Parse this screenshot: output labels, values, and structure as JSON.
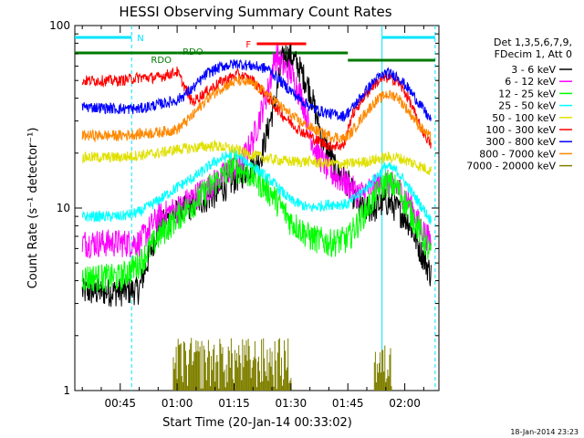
{
  "chart_data": {
    "type": "line",
    "title": "HESSI Observing Summary Count Rates",
    "xlabel": "Start Time (20-Jan-14 00:33:02)",
    "ylabel": "Count Rate (s⁻¹ detector⁻¹)",
    "y_scale": "log",
    "ylim": [
      1,
      100
    ],
    "xlim": [
      "00:33:02",
      "02:09:00"
    ],
    "x_tick_labels": [
      "00:45",
      "01:00",
      "01:15",
      "01:30",
      "01:45",
      "02:00"
    ],
    "x_ticks_minutes": [
      45,
      60,
      75,
      90,
      105,
      120
    ],
    "y_tick_labels": [
      "1",
      "10",
      "100"
    ],
    "y_ticks": [
      1,
      10,
      100
    ],
    "legend_header": [
      "Det 1,3,5,6,7,9,",
      "FDecim 1, Att 0"
    ],
    "legend_position": "right",
    "date_stamp": "18-Jan-2014 23:23",
    "flags": {
      "N": {
        "label": "N",
        "color": "#00e5ff",
        "segments": [
          [
            "00:33",
            "00:48"
          ],
          [
            "01:54",
            "02:08"
          ]
        ]
      },
      "RDO": {
        "label": "RDO",
        "color": "#007a00",
        "segments": [
          [
            "00:33",
            "01:00"
          ],
          [
            "01:00",
            "01:45"
          ],
          [
            "01:45",
            "02:08"
          ]
        ]
      },
      "F": {
        "label": "F",
        "color": "#ff0000",
        "segments": [
          [
            "01:21",
            "01:34"
          ]
        ]
      }
    },
    "series": [
      {
        "name": "3 - 6 keV",
        "color": "#000000",
        "x": [
          35,
          45,
          50,
          55,
          60,
          70,
          78,
          82,
          86,
          88,
          90,
          92,
          95,
          98,
          102,
          105,
          108,
          112,
          115,
          118,
          121,
          124,
          127
        ],
        "y": [
          3.5,
          3.5,
          3.6,
          8.0,
          9.5,
          12.0,
          16.0,
          19.0,
          40.0,
          70.0,
          68.0,
          60.0,
          45.0,
          25.0,
          16.0,
          14.0,
          10.0,
          10.0,
          11.0,
          10.0,
          8.5,
          6.0,
          4.3
        ]
      },
      {
        "name": "6 - 12 keV",
        "color": "#ff00ff",
        "x": [
          35,
          45,
          50,
          55,
          60,
          70,
          77,
          80,
          84,
          86,
          88,
          90,
          93,
          96,
          100,
          104,
          108,
          112,
          115,
          118,
          121,
          124,
          127
        ],
        "y": [
          6.5,
          6.5,
          6.5,
          9.0,
          10.0,
          14.0,
          18.0,
          24.0,
          45.0,
          70.0,
          60.0,
          55.0,
          40.0,
          22.0,
          16.0,
          14.0,
          12.0,
          13.0,
          14.0,
          13.0,
          11.0,
          8.0,
          6.5
        ]
      },
      {
        "name": "12 - 25 keV",
        "color": "#00ff00",
        "x": [
          35,
          45,
          50,
          55,
          60,
          65,
          70,
          75,
          80,
          85,
          90,
          95,
          100,
          105,
          110,
          115,
          118,
          121,
          124,
          127
        ],
        "y": [
          4.2,
          4.2,
          5.0,
          7.0,
          9.0,
          11.0,
          14.0,
          17.0,
          15.0,
          12.0,
          8.5,
          7.0,
          6.5,
          6.8,
          10.0,
          14.0,
          13.0,
          10.0,
          7.5,
          5.5
        ]
      },
      {
        "name": "25 - 50 keV",
        "color": "#00ffff",
        "x": [
          35,
          45,
          50,
          55,
          60,
          65,
          70,
          75,
          80,
          85,
          90,
          95,
          100,
          105,
          110,
          115,
          118,
          121,
          124,
          127
        ],
        "y": [
          9.0,
          9.0,
          9.5,
          11.0,
          13.0,
          15.0,
          18.0,
          20.0,
          17.0,
          14.0,
          11.0,
          10.0,
          10.5,
          10.5,
          13.0,
          17.0,
          16.0,
          13.0,
          10.5,
          8.5
        ]
      },
      {
        "name": "50 - 100 keV",
        "color": "#e0e000",
        "x": [
          35,
          45,
          50,
          55,
          60,
          65,
          70,
          75,
          80,
          85,
          90,
          95,
          100,
          105,
          110,
          115,
          118,
          121,
          124,
          127
        ],
        "y": [
          19.0,
          19.0,
          19.5,
          20.0,
          21.0,
          21.5,
          22.0,
          21.0,
          19.5,
          18.5,
          18.0,
          18.0,
          17.5,
          17.5,
          18.0,
          19.0,
          19.0,
          18.0,
          17.0,
          16.0
        ]
      },
      {
        "name": "100 - 300 keV",
        "color": "#ff0000",
        "x": [
          35,
          45,
          50,
          55,
          60,
          64,
          68,
          72,
          76,
          80,
          84,
          88,
          92,
          96,
          100,
          104,
          106,
          109,
          112,
          115,
          118,
          121,
          124,
          127
        ],
        "y": [
          50.0,
          50.0,
          52.0,
          52.0,
          56.0,
          38.0,
          44.0,
          50.0,
          54.0,
          50.0,
          40.0,
          32.0,
          27.0,
          24.0,
          22.0,
          22.0,
          32.0,
          40.0,
          48.0,
          52.0,
          50.0,
          40.0,
          28.0,
          22.0
        ]
      },
      {
        "name": "300 - 800 keV",
        "color": "#0000ff",
        "x": [
          35,
          45,
          50,
          55,
          60,
          64,
          68,
          72,
          76,
          80,
          84,
          88,
          92,
          96,
          100,
          104,
          106,
          109,
          112,
          115,
          118,
          121,
          124,
          127
        ],
        "y": [
          36.0,
          35.0,
          35.0,
          37.0,
          39.0,
          45.0,
          55.0,
          60.0,
          62.0,
          60.0,
          58.0,
          48.0,
          40.0,
          35.0,
          33.0,
          32.0,
          35.0,
          42.0,
          50.0,
          55.0,
          53.0,
          45.0,
          37.0,
          30.0
        ]
      },
      {
        "name": "800 - 7000 keV",
        "color": "#ff8800",
        "x": [
          35,
          45,
          50,
          55,
          60,
          64,
          68,
          72,
          76,
          80,
          84,
          88,
          92,
          96,
          100,
          104,
          106,
          109,
          112,
          115,
          118,
          121,
          124,
          127
        ],
        "y": [
          25.0,
          25.0,
          25.5,
          26.0,
          27.0,
          32.0,
          40.0,
          46.0,
          50.0,
          48.0,
          42.0,
          35.0,
          30.0,
          27.0,
          25.0,
          24.0,
          26.0,
          32.0,
          38.0,
          42.0,
          41.0,
          34.0,
          28.0,
          24.0
        ]
      },
      {
        "name": "7000 - 20000 keV",
        "color": "#808000",
        "x": [
          59,
          60,
          62,
          64,
          66,
          68,
          70,
          72,
          74,
          78,
          80,
          82,
          84,
          86,
          88,
          90,
          112,
          113,
          114,
          115,
          116
        ],
        "y": [
          1.0,
          1.9,
          1.0,
          1.9,
          1.0,
          1.9,
          1.0,
          1.9,
          1.0,
          1.9,
          1.0,
          1.9,
          1.0,
          1.9,
          1.0,
          1.6,
          1.0,
          1.8,
          1.0,
          1.8,
          1.0
        ]
      }
    ]
  }
}
